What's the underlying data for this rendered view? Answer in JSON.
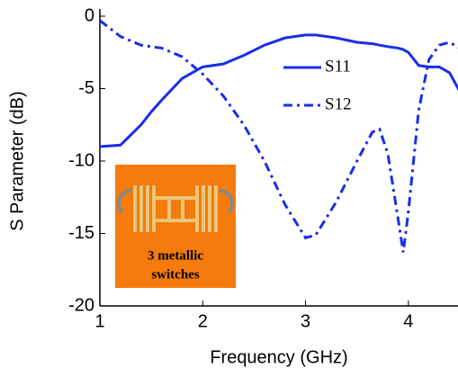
{
  "chart_data": {
    "type": "line",
    "x_label": "Frequency (GHz)",
    "y_label": "S Parameter (dB)",
    "x": [
      1.0,
      1.2,
      1.4,
      1.5,
      1.6,
      1.8,
      2.0,
      2.2,
      2.4,
      2.6,
      2.8,
      3.0,
      3.1,
      3.3,
      3.5,
      3.65,
      3.72,
      3.8,
      3.9,
      3.95,
      4.0,
      4.1,
      4.2,
      4.3,
      4.4,
      4.5
    ],
    "series": [
      {
        "name": "S11",
        "color": "#1a2ee6",
        "dash": "solid",
        "values": [
          -9,
          -8.9,
          -7.5,
          -6.6,
          -5.8,
          -4.3,
          -3.5,
          -3.3,
          -2.7,
          -2.0,
          -1.5,
          -1.3,
          -1.3,
          -1.5,
          -1.8,
          -1.9,
          -2.0,
          -2.1,
          -2.2,
          -2.3,
          -2.5,
          -3.4,
          -3.5,
          -3.5,
          -3.9,
          -5.2
        ]
      },
      {
        "name": "S12",
        "color": "#1a2ee6",
        "dash": "dashdot",
        "values": [
          -0.3,
          -1.4,
          -2.0,
          -2.1,
          -2.2,
          -2.8,
          -4.0,
          -5.5,
          -7.5,
          -10,
          -13,
          -15.3,
          -15.1,
          -12.8,
          -10,
          -8,
          -7.8,
          -9.5,
          -14,
          -16.3,
          -13.5,
          -6.5,
          -3,
          -2,
          -1.8,
          -2.2
        ]
      }
    ],
    "xlim": [
      1,
      4.5
    ],
    "ylim": [
      -20,
      0
    ],
    "xticks": [
      1,
      2,
      3,
      4
    ],
    "yticks": [
      0,
      -5,
      -10,
      -15,
      -20
    ],
    "annotations": [
      "3 metallic",
      "switches"
    ]
  }
}
